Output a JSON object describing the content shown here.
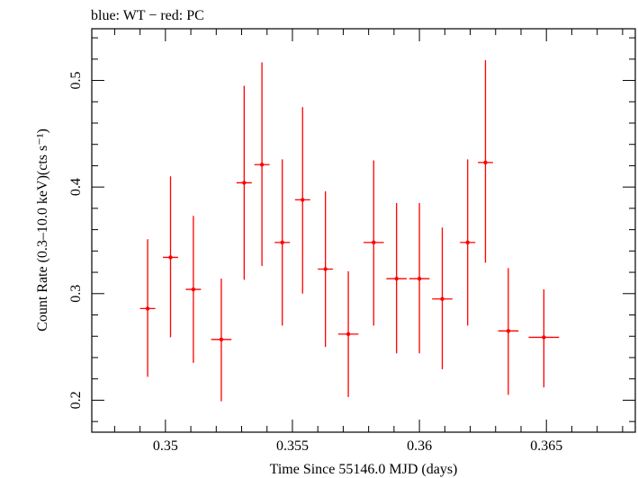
{
  "header": {
    "subtitle": "blue: WT − red: PC"
  },
  "chart_data": {
    "type": "scatter",
    "subtitle": "blue: WT − red: PC",
    "xlabel": "Time Since 55146.0 MJD (days)",
    "ylabel": "Count Rate (0.3–10.0 keV)(cts s⁻¹)",
    "xlim": [
      0.3471,
      0.3685
    ],
    "ylim": [
      0.17,
      0.5485
    ],
    "x_ticks": [
      0.35,
      0.355,
      0.36,
      0.365
    ],
    "x_tick_labels": [
      "0.35",
      "0.355",
      "0.36",
      "0.365"
    ],
    "y_ticks": [
      0.2,
      0.3,
      0.4,
      0.5
    ],
    "y_tick_labels": [
      "0.2",
      "0.3",
      "0.4",
      "0.5"
    ],
    "grid": false,
    "series": [
      {
        "color": "#ff0000",
        "points": [
          {
            "x": 0.3493,
            "xerr": 0.0003,
            "y": 0.286,
            "ylo": 0.222,
            "yhi": 0.351
          },
          {
            "x": 0.3502,
            "xerr": 0.0003,
            "y": 0.334,
            "ylo": 0.259,
            "yhi": 0.41
          },
          {
            "x": 0.3511,
            "xerr": 0.0003,
            "y": 0.304,
            "ylo": 0.235,
            "yhi": 0.373
          },
          {
            "x": 0.3522,
            "xerr": 0.0004,
            "y": 0.257,
            "ylo": 0.199,
            "yhi": 0.314
          },
          {
            "x": 0.3531,
            "xerr": 0.0003,
            "y": 0.404,
            "ylo": 0.313,
            "yhi": 0.495
          },
          {
            "x": 0.3538,
            "xerr": 0.0003,
            "y": 0.421,
            "ylo": 0.326,
            "yhi": 0.517
          },
          {
            "x": 0.3546,
            "xerr": 0.0003,
            "y": 0.348,
            "ylo": 0.27,
            "yhi": 0.426
          },
          {
            "x": 0.3554,
            "xerr": 0.0003,
            "y": 0.388,
            "ylo": 0.3,
            "yhi": 0.475
          },
          {
            "x": 0.3563,
            "xerr": 0.0003,
            "y": 0.323,
            "ylo": 0.25,
            "yhi": 0.396
          },
          {
            "x": 0.3572,
            "xerr": 0.0004,
            "y": 0.262,
            "ylo": 0.203,
            "yhi": 0.321
          },
          {
            "x": 0.3582,
            "xerr": 0.0004,
            "y": 0.348,
            "ylo": 0.27,
            "yhi": 0.425
          },
          {
            "x": 0.3591,
            "xerr": 0.0004,
            "y": 0.314,
            "ylo": 0.244,
            "yhi": 0.385
          },
          {
            "x": 0.36,
            "xerr": 0.0004,
            "y": 0.314,
            "ylo": 0.244,
            "yhi": 0.385
          },
          {
            "x": 0.3609,
            "xerr": 0.0004,
            "y": 0.295,
            "ylo": 0.229,
            "yhi": 0.362
          },
          {
            "x": 0.3619,
            "xerr": 0.0003,
            "y": 0.348,
            "ylo": 0.27,
            "yhi": 0.426
          },
          {
            "x": 0.3626,
            "xerr": 0.0003,
            "y": 0.423,
            "ylo": 0.329,
            "yhi": 0.519
          },
          {
            "x": 0.3635,
            "xerr": 0.0004,
            "y": 0.265,
            "ylo": 0.205,
            "yhi": 0.324
          },
          {
            "x": 0.3649,
            "xerr": 0.0006,
            "y": 0.259,
            "ylo": 0.212,
            "yhi": 0.304
          }
        ]
      }
    ]
  }
}
